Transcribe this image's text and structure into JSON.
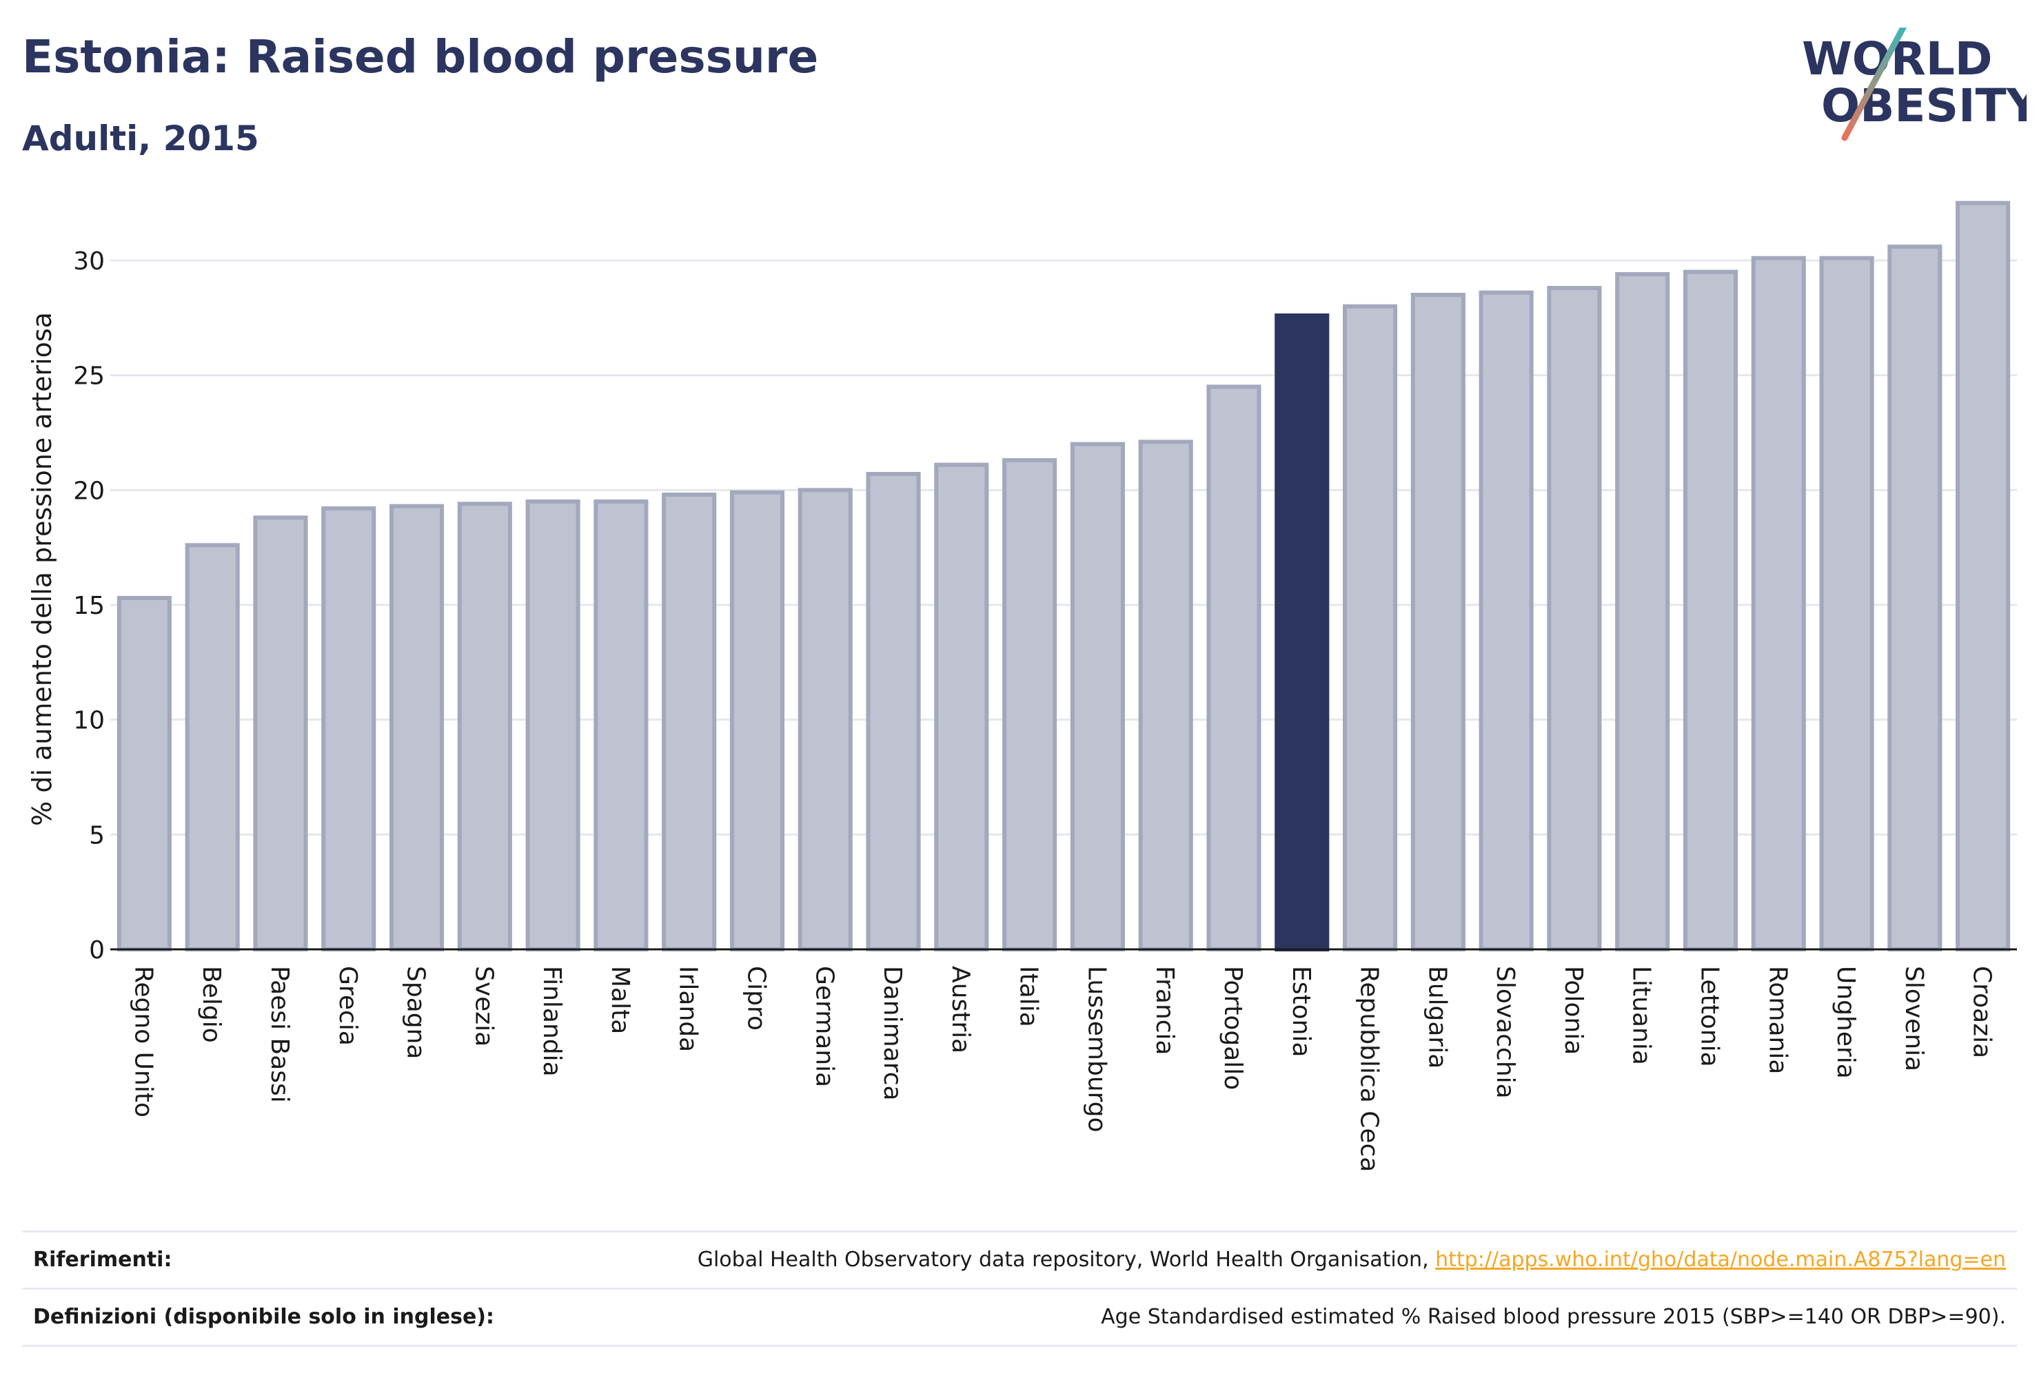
{
  "header": {
    "title": "Estonia: Raised blood pressure",
    "subtitle": "Adulti, 2015"
  },
  "logo": {
    "line1": "WORLD",
    "line2": "OBESITY"
  },
  "chart_data": {
    "type": "bar",
    "ylabel": "% di aumento della pressione arteriosa",
    "ylim": [
      0,
      33
    ],
    "yticks": [
      0,
      5,
      10,
      15,
      20,
      25,
      30
    ],
    "grid": true,
    "highlight": "Estonia",
    "categories": [
      "Regno Unito",
      "Belgio",
      "Paesi Bassi",
      "Grecia",
      "Spagna",
      "Svezia",
      "Finlandia",
      "Malta",
      "Irlanda",
      "Cipro",
      "Germania",
      "Danimarca",
      "Austria",
      "Italia",
      "Lussemburgo",
      "Francia",
      "Portogallo",
      "Estonia",
      "Repubblica Ceca",
      "Bulgaria",
      "Slovacchia",
      "Polonia",
      "Lituania",
      "Lettonia",
      "Romania",
      "Ungheria",
      "Slovenia",
      "Croazia"
    ],
    "values": [
      15.3,
      17.6,
      18.8,
      19.2,
      19.3,
      19.4,
      19.5,
      19.5,
      19.8,
      19.9,
      20.0,
      20.7,
      21.1,
      21.3,
      22.0,
      22.1,
      24.5,
      27.6,
      28.0,
      28.5,
      28.6,
      28.8,
      29.4,
      29.5,
      30.1,
      30.1,
      30.6,
      32.5
    ]
  },
  "references": {
    "label": "Riferimenti:",
    "text": "Global Health Observatory data repository, World Health Organisation, ",
    "link": "http://apps.who.int/gho/data/node.main.A875?lang=en"
  },
  "definitions": {
    "label": "Definizioni (disponibile solo in inglese):",
    "text": "Age Standardised estimated % Raised blood pressure 2015 (SBP>=140 OR DBP>=90)."
  },
  "colors": {
    "title": "#2b3560",
    "bar": "#bfc2d0",
    "bar_stroke": "#a3a8bd",
    "highlight": "#2b3560",
    "logo_slash_top": "#3cb8b5",
    "logo_slash_bottom": "#e8735a",
    "link": "#f5a623"
  }
}
